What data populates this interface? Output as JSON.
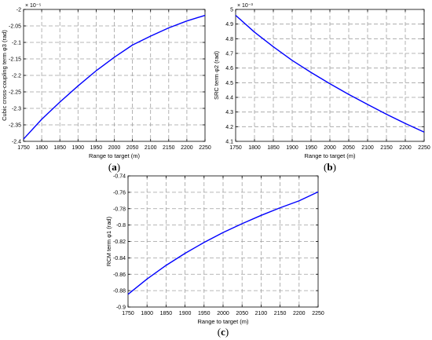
{
  "chart_data": [
    {
      "type": "line",
      "panel": "(a)",
      "panel_letter": "a",
      "xlabel": "Range to target (m)",
      "ylabel": "Cubic cross-coupling term φ3 (rad)",
      "y_multiplier": "× 10⁻⁵",
      "xlim": [
        1750,
        2250
      ],
      "ylim": [
        -2.4,
        -2.0
      ],
      "xticks": [
        "1750",
        "1800",
        "1850",
        "1900",
        "1950",
        "2000",
        "2050",
        "2100",
        "2150",
        "2200",
        "2250"
      ],
      "yticks": [
        "-2.4",
        "-2.35",
        "-2.3",
        "-2.25",
        "-2.2",
        "-2.15",
        "-2.1",
        "-2.05",
        "-2"
      ],
      "grid": true,
      "series": [
        {
          "color": "#0000ff",
          "x": [
            1750,
            1800,
            1850,
            1900,
            1950,
            2000,
            2050,
            2100,
            2150,
            2200,
            2250
          ],
          "y": [
            -2.393,
            -2.333,
            -2.281,
            -2.232,
            -2.186,
            -2.145,
            -2.108,
            -2.081,
            -2.056,
            -2.035,
            -2.018
          ]
        }
      ]
    },
    {
      "type": "line",
      "panel": "(b)",
      "panel_letter": "b",
      "xlabel": "Range to target (m)",
      "ylabel": "SRC term φ2 (rad)",
      "y_multiplier": "× 10⁻³",
      "xlim": [
        1750,
        2250
      ],
      "ylim": [
        4.1,
        5.0
      ],
      "xticks": [
        "1750",
        "1800",
        "1850",
        "1900",
        "1950",
        "2000",
        "2050",
        "2100",
        "2150",
        "2200",
        "2250"
      ],
      "yticks": [
        "4.1",
        "4.2",
        "4.3",
        "4.4",
        "4.5",
        "4.6",
        "4.7",
        "4.8",
        "4.9",
        "5"
      ],
      "grid": true,
      "series": [
        {
          "color": "#0000ff",
          "x": [
            1750,
            1800,
            1850,
            1900,
            1950,
            2000,
            2050,
            2100,
            2150,
            2200,
            2250
          ],
          "y": [
            4.96,
            4.845,
            4.745,
            4.652,
            4.57,
            4.493,
            4.42,
            4.352,
            4.285,
            4.222,
            4.163
          ]
        }
      ]
    },
    {
      "type": "line",
      "panel": "(c)",
      "panel_letter": "c",
      "xlabel": "Range to target (m)",
      "ylabel": "RCM term φ1 (rad)",
      "y_multiplier": "",
      "xlim": [
        1750,
        2250
      ],
      "ylim": [
        -0.9,
        -0.74
      ],
      "xticks": [
        "1750",
        "1800",
        "1850",
        "1900",
        "1950",
        "2000",
        "2050",
        "2100",
        "2150",
        "2200",
        "2250"
      ],
      "yticks": [
        "-0.9",
        "-0.88",
        "-0.86",
        "-0.84",
        "-0.82",
        "-0.8",
        "-0.78",
        "-0.76",
        "-0.74"
      ],
      "grid": true,
      "series": [
        {
          "color": "#0000ff",
          "x": [
            1750,
            1800,
            1850,
            1900,
            1950,
            2000,
            2050,
            2100,
            2150,
            2200,
            2250
          ],
          "y": [
            -0.8845,
            -0.8658,
            -0.8492,
            -0.8345,
            -0.8212,
            -0.8091,
            -0.7983,
            -0.7882,
            -0.7789,
            -0.7704,
            -0.7595
          ]
        }
      ]
    }
  ]
}
